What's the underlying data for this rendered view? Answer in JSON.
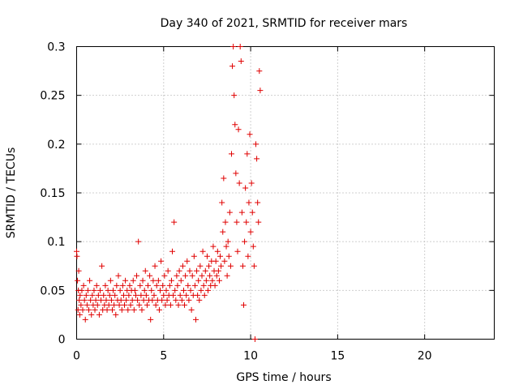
{
  "chart_data": {
    "type": "scatter",
    "title": "Day 340 of 2021, SRMTID for receiver mars",
    "xlabel": "GPS time / hours",
    "ylabel": "SRMTID / TECUs",
    "xlim": [
      0,
      24
    ],
    "ylim": [
      0,
      0.3
    ],
    "xticks": [
      0,
      5,
      10,
      15,
      20
    ],
    "xtick_labels": [
      "0",
      "5",
      "10",
      "15",
      "20"
    ],
    "yticks": [
      0,
      0.05,
      0.1,
      0.15,
      0.2,
      0.25,
      0.3
    ],
    "ytick_labels": [
      "0",
      "0.05",
      "0.1",
      "0.15",
      "0.2",
      "0.25",
      "0.3"
    ],
    "grid": true,
    "marker": "+",
    "color": "#e00000",
    "series": [
      {
        "name": "SRMTID",
        "points": [
          [
            0.0,
            0.09
          ],
          [
            0.02,
            0.085
          ],
          [
            0.05,
            0.06
          ],
          [
            0.08,
            0.03
          ],
          [
            0.1,
            0.05
          ],
          [
            0.12,
            0.07
          ],
          [
            0.15,
            0.04
          ],
          [
            0.18,
            0.025
          ],
          [
            0.2,
            0.045
          ],
          [
            0.25,
            0.035
          ],
          [
            0.3,
            0.05
          ],
          [
            0.35,
            0.03
          ],
          [
            0.4,
            0.055
          ],
          [
            0.45,
            0.04
          ],
          [
            0.5,
            0.02
          ],
          [
            0.55,
            0.045
          ],
          [
            0.6,
            0.035
          ],
          [
            0.65,
            0.05
          ],
          [
            0.7,
            0.03
          ],
          [
            0.75,
            0.06
          ],
          [
            0.8,
            0.04
          ],
          [
            0.85,
            0.025
          ],
          [
            0.9,
            0.045
          ],
          [
            0.95,
            0.035
          ],
          [
            1.0,
            0.05
          ],
          [
            1.05,
            0.03
          ],
          [
            1.1,
            0.04
          ],
          [
            1.15,
            0.055
          ],
          [
            1.2,
            0.035
          ],
          [
            1.25,
            0.045
          ],
          [
            1.3,
            0.025
          ],
          [
            1.35,
            0.05
          ],
          [
            1.4,
            0.04
          ],
          [
            1.45,
            0.075
          ],
          [
            1.5,
            0.03
          ],
          [
            1.55,
            0.045
          ],
          [
            1.6,
            0.035
          ],
          [
            1.65,
            0.055
          ],
          [
            1.7,
            0.04
          ],
          [
            1.75,
            0.03
          ],
          [
            1.8,
            0.05
          ],
          [
            1.85,
            0.035
          ],
          [
            1.9,
            0.045
          ],
          [
            1.95,
            0.06
          ],
          [
            2.0,
            0.04
          ],
          [
            2.05,
            0.03
          ],
          [
            2.1,
            0.05
          ],
          [
            2.15,
            0.035
          ],
          [
            2.2,
            0.045
          ],
          [
            2.25,
            0.025
          ],
          [
            2.3,
            0.055
          ],
          [
            2.35,
            0.04
          ],
          [
            2.4,
            0.065
          ],
          [
            2.45,
            0.035
          ],
          [
            2.5,
            0.05
          ],
          [
            2.55,
            0.04
          ],
          [
            2.6,
            0.03
          ],
          [
            2.65,
            0.055
          ],
          [
            2.7,
            0.045
          ],
          [
            2.75,
            0.035
          ],
          [
            2.8,
            0.06
          ],
          [
            2.85,
            0.04
          ],
          [
            2.9,
            0.05
          ],
          [
            2.95,
            0.03
          ],
          [
            3.0,
            0.045
          ],
          [
            3.05,
            0.055
          ],
          [
            3.1,
            0.035
          ],
          [
            3.15,
            0.05
          ],
          [
            3.2,
            0.04
          ],
          [
            3.25,
            0.06
          ],
          [
            3.3,
            0.03
          ],
          [
            3.35,
            0.05
          ],
          [
            3.4,
            0.045
          ],
          [
            3.45,
            0.065
          ],
          [
            3.5,
            0.04
          ],
          [
            3.55,
            0.1
          ],
          [
            3.6,
            0.035
          ],
          [
            3.65,
            0.055
          ],
          [
            3.7,
            0.045
          ],
          [
            3.75,
            0.03
          ],
          [
            3.8,
            0.06
          ],
          [
            3.85,
            0.04
          ],
          [
            3.9,
            0.05
          ],
          [
            3.95,
            0.07
          ],
          [
            4.0,
            0.045
          ],
          [
            4.05,
            0.035
          ],
          [
            4.1,
            0.055
          ],
          [
            4.15,
            0.04
          ],
          [
            4.2,
            0.065
          ],
          [
            4.25,
            0.02
          ],
          [
            4.3,
            0.05
          ],
          [
            4.35,
            0.04
          ],
          [
            4.4,
            0.06
          ],
          [
            4.45,
            0.045
          ],
          [
            4.5,
            0.075
          ],
          [
            4.55,
            0.035
          ],
          [
            4.6,
            0.055
          ],
          [
            4.65,
            0.04
          ],
          [
            4.7,
            0.06
          ],
          [
            4.75,
            0.03
          ],
          [
            4.8,
            0.05
          ],
          [
            4.85,
            0.08
          ],
          [
            4.9,
            0.04
          ],
          [
            4.95,
            0.055
          ],
          [
            5.0,
            0.045
          ],
          [
            5.05,
            0.065
          ],
          [
            5.1,
            0.035
          ],
          [
            5.15,
            0.05
          ],
          [
            5.2,
            0.04
          ],
          [
            5.25,
            0.07
          ],
          [
            5.3,
            0.045
          ],
          [
            5.35,
            0.055
          ],
          [
            5.4,
            0.035
          ],
          [
            5.45,
            0.06
          ],
          [
            5.5,
            0.09
          ],
          [
            5.55,
            0.045
          ],
          [
            5.6,
            0.12
          ],
          [
            5.65,
            0.05
          ],
          [
            5.7,
            0.04
          ],
          [
            5.75,
            0.065
          ],
          [
            5.8,
            0.055
          ],
          [
            5.85,
            0.035
          ],
          [
            5.9,
            0.07
          ],
          [
            5.95,
            0.045
          ],
          [
            6.0,
            0.06
          ],
          [
            6.05,
            0.04
          ],
          [
            6.1,
            0.075
          ],
          [
            6.15,
            0.05
          ],
          [
            6.2,
            0.035
          ],
          [
            6.25,
            0.065
          ],
          [
            6.3,
            0.045
          ],
          [
            6.35,
            0.08
          ],
          [
            6.4,
            0.055
          ],
          [
            6.45,
            0.04
          ],
          [
            6.5,
            0.07
          ],
          [
            6.55,
            0.05
          ],
          [
            6.6,
            0.03
          ],
          [
            6.65,
            0.065
          ],
          [
            6.7,
            0.045
          ],
          [
            6.75,
            0.085
          ],
          [
            6.8,
            0.055
          ],
          [
            6.85,
            0.02
          ],
          [
            6.9,
            0.07
          ],
          [
            6.95,
            0.045
          ],
          [
            7.0,
            0.06
          ],
          [
            7.05,
            0.04
          ],
          [
            7.1,
            0.075
          ],
          [
            7.15,
            0.05
          ],
          [
            7.2,
            0.065
          ],
          [
            7.25,
            0.09
          ],
          [
            7.3,
            0.055
          ],
          [
            7.35,
            0.045
          ],
          [
            7.4,
            0.07
          ],
          [
            7.45,
            0.06
          ],
          [
            7.5,
            0.085
          ],
          [
            7.55,
            0.05
          ],
          [
            7.6,
            0.075
          ],
          [
            7.65,
            0.065
          ],
          [
            7.7,
            0.055
          ],
          [
            7.75,
            0.08
          ],
          [
            7.8,
            0.06
          ],
          [
            7.85,
            0.095
          ],
          [
            7.9,
            0.07
          ],
          [
            7.95,
            0.055
          ],
          [
            8.0,
            0.08
          ],
          [
            8.05,
            0.065
          ],
          [
            8.1,
            0.09
          ],
          [
            8.15,
            0.07
          ],
          [
            8.2,
            0.06
          ],
          [
            8.25,
            0.085
          ],
          [
            8.3,
            0.075
          ],
          [
            8.35,
            0.14
          ],
          [
            8.4,
            0.11
          ],
          [
            8.45,
            0.165
          ],
          [
            8.5,
            0.08
          ],
          [
            8.55,
            0.12
          ],
          [
            8.6,
            0.095
          ],
          [
            8.65,
            0.065
          ],
          [
            8.7,
            0.1
          ],
          [
            8.75,
            0.085
          ],
          [
            8.8,
            0.13
          ],
          [
            8.85,
            0.075
          ],
          [
            8.9,
            0.19
          ],
          [
            8.95,
            0.28
          ],
          [
            9.0,
            0.3
          ],
          [
            9.05,
            0.25
          ],
          [
            9.1,
            0.22
          ],
          [
            9.15,
            0.17
          ],
          [
            9.2,
            0.12
          ],
          [
            9.25,
            0.09
          ],
          [
            9.3,
            0.215
          ],
          [
            9.35,
            0.16
          ],
          [
            9.4,
            0.3
          ],
          [
            9.45,
            0.285
          ],
          [
            9.5,
            0.13
          ],
          [
            9.55,
            0.075
          ],
          [
            9.6,
            0.035
          ],
          [
            9.65,
            0.1
          ],
          [
            9.7,
            0.155
          ],
          [
            9.75,
            0.12
          ],
          [
            9.8,
            0.19
          ],
          [
            9.85,
            0.085
          ],
          [
            9.9,
            0.14
          ],
          [
            9.95,
            0.21
          ],
          [
            10.0,
            0.11
          ],
          [
            10.05,
            0.16
          ],
          [
            10.1,
            0.13
          ],
          [
            10.15,
            0.095
          ],
          [
            10.2,
            0.075
          ],
          [
            10.25,
            0.0
          ],
          [
            10.3,
            0.2
          ],
          [
            10.35,
            0.185
          ],
          [
            10.4,
            0.14
          ],
          [
            10.45,
            0.12
          ],
          [
            10.5,
            0.275
          ],
          [
            10.55,
            0.255
          ]
        ]
      }
    ]
  }
}
